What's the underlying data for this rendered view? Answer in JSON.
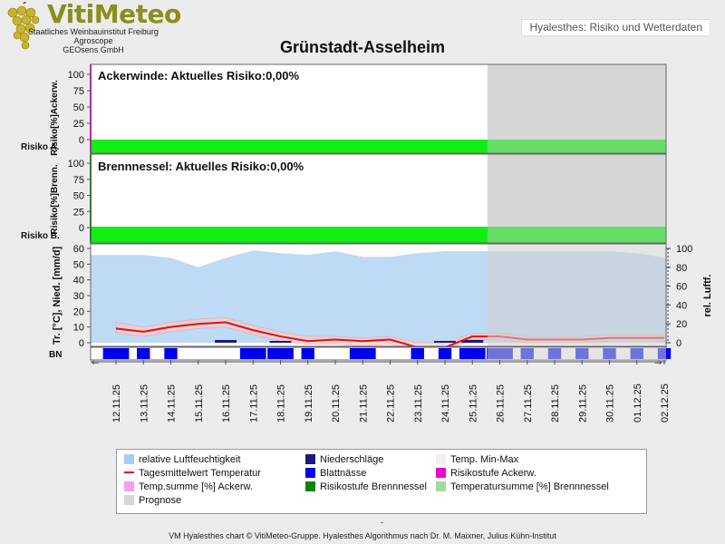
{
  "logo": {
    "title": "VitiMeteo",
    "line1": "Staatliches Weinbauinstitut Freiburg",
    "line2": "Agroscope",
    "line3": "GEOsens GmbH"
  },
  "header_label": "Hyalesthes: Risiko und Wetterdaten",
  "chart_data": {
    "type": "line",
    "title": "Grünstadt-Asselheim",
    "dates": [
      "12.11.25",
      "13.11.25",
      "14.11.25",
      "15.11.25",
      "16.11.25",
      "17.11.25",
      "18.11.25",
      "19.11.25",
      "20.11.25",
      "21.11.25",
      "22.11.25",
      "23.11.25",
      "24.11.25",
      "25.11.25",
      "26.11.25",
      "27.11.25",
      "28.11.25",
      "29.11.25",
      "30.11.25",
      "01.12.25",
      "02.12.25"
    ],
    "forecast_start": "26.11.25",
    "panels": [
      {
        "id": "ackerwinde",
        "label": "Ackerwinde: Aktuelles Risiko:0,00%",
        "ylabel": "Risiko[%]Ackerw.",
        "bar_label": "Risiko A.",
        "ylim": [
          0,
          100
        ],
        "yticks": [
          0,
          25,
          50,
          75,
          100
        ],
        "risk_percent": 0.0,
        "risk_level": "low"
      },
      {
        "id": "brennnessel",
        "label": "Brennnessel: Aktuelles Risiko:0,00%",
        "ylabel": "Risiko[%]Brenn.",
        "bar_label": "Risiko B.",
        "ylim": [
          0,
          100
        ],
        "yticks": [
          0,
          25,
          50,
          75,
          100
        ],
        "risk_percent": 0.0,
        "risk_level": "low"
      }
    ],
    "weather": {
      "ylabel_left": "Tr. [°C], Nied. [mm/d]",
      "ylabel_right": "rel. Luftf.",
      "ylim_left": [
        0,
        60
      ],
      "yticks_left": [
        0,
        10,
        20,
        30,
        40,
        50,
        60
      ],
      "ylim_right": [
        0,
        100
      ],
      "yticks_right": [
        0,
        20,
        40,
        60,
        80,
        100
      ],
      "bn_label": "BN",
      "humidity": [
        93,
        93,
        90,
        80,
        90,
        98,
        95,
        93,
        97,
        91,
        91,
        95,
        97,
        97,
        97,
        97,
        97,
        97,
        97,
        95,
        90
      ],
      "temp_mean": [
        9,
        7,
        10,
        12,
        13,
        8,
        4,
        1,
        2,
        1,
        2,
        -3,
        -3,
        4,
        4,
        2,
        2,
        2,
        3,
        3,
        3
      ],
      "temp_min": [
        6,
        4,
        7,
        9,
        10,
        5,
        1,
        -1,
        -1,
        -2,
        -1,
        -5,
        -5,
        2,
        2,
        0,
        0,
        0,
        1,
        1,
        1
      ],
      "temp_max": [
        13,
        10,
        13,
        15,
        16,
        11,
        7,
        4,
        4,
        3,
        4,
        0,
        0,
        6,
        6,
        4,
        4,
        4,
        5,
        5,
        5
      ],
      "precipitation": [
        0,
        0,
        0,
        0,
        1,
        0,
        0.5,
        0,
        0,
        0,
        0,
        0,
        0.5,
        1,
        0,
        0,
        0,
        0,
        0,
        0,
        0
      ],
      "leaf_wetness": [
        1,
        0.5,
        0.5,
        0,
        0,
        1,
        1,
        0.5,
        0,
        1,
        0,
        0.5,
        0.5,
        1,
        1,
        0.5,
        0.5,
        0.5,
        0.5,
        0.5,
        0.5
      ]
    },
    "legend": [
      {
        "key": "humidity",
        "label": "relative Luftfeuchtigkeit",
        "color": "#a9cdf0",
        "kind": "swatch"
      },
      {
        "key": "precip",
        "label": "Niederschläge",
        "color": "#1a1a7a",
        "kind": "swatch"
      },
      {
        "key": "tminmax",
        "label": "Temp. Min-Max",
        "color": "#f4eef0",
        "kind": "swatch"
      },
      {
        "key": "tmean",
        "label": "Tagesmittelwert Temperatur",
        "color": "#e01010",
        "kind": "line"
      },
      {
        "key": "wet",
        "label": "Blattnässe",
        "color": "#0000ee",
        "kind": "swatch"
      },
      {
        "key": "riskA",
        "label": "Risikostufe Ackerw.",
        "color": "#ee00cc",
        "kind": "swatch"
      },
      {
        "key": "tsumA",
        "label": "Temp.summe [%] Ackerw.",
        "color": "#f3a0ea",
        "kind": "swatch"
      },
      {
        "key": "riskB",
        "label": "Risikostufe Brennnessel",
        "color": "#148014",
        "kind": "swatch"
      },
      {
        "key": "tsumB",
        "label": "Temperatursumme [%] Brennnessel",
        "color": "#9edc9e",
        "kind": "swatch"
      },
      {
        "key": "prog",
        "label": "Prognose",
        "color": "#d6d6d6",
        "kind": "swatch"
      }
    ]
  },
  "colors": {
    "risk_low": "#11ee11",
    "forecast_shade": "#cfcfcf",
    "panel_border": "#666666"
  },
  "footer": "VM Hyalesthes chart © VitiMeteo-Gruppe. Hyalesthes Algorithmus nach Dr. M. Maixner, Julius Kühn-Institut",
  "footer_mark": "-"
}
